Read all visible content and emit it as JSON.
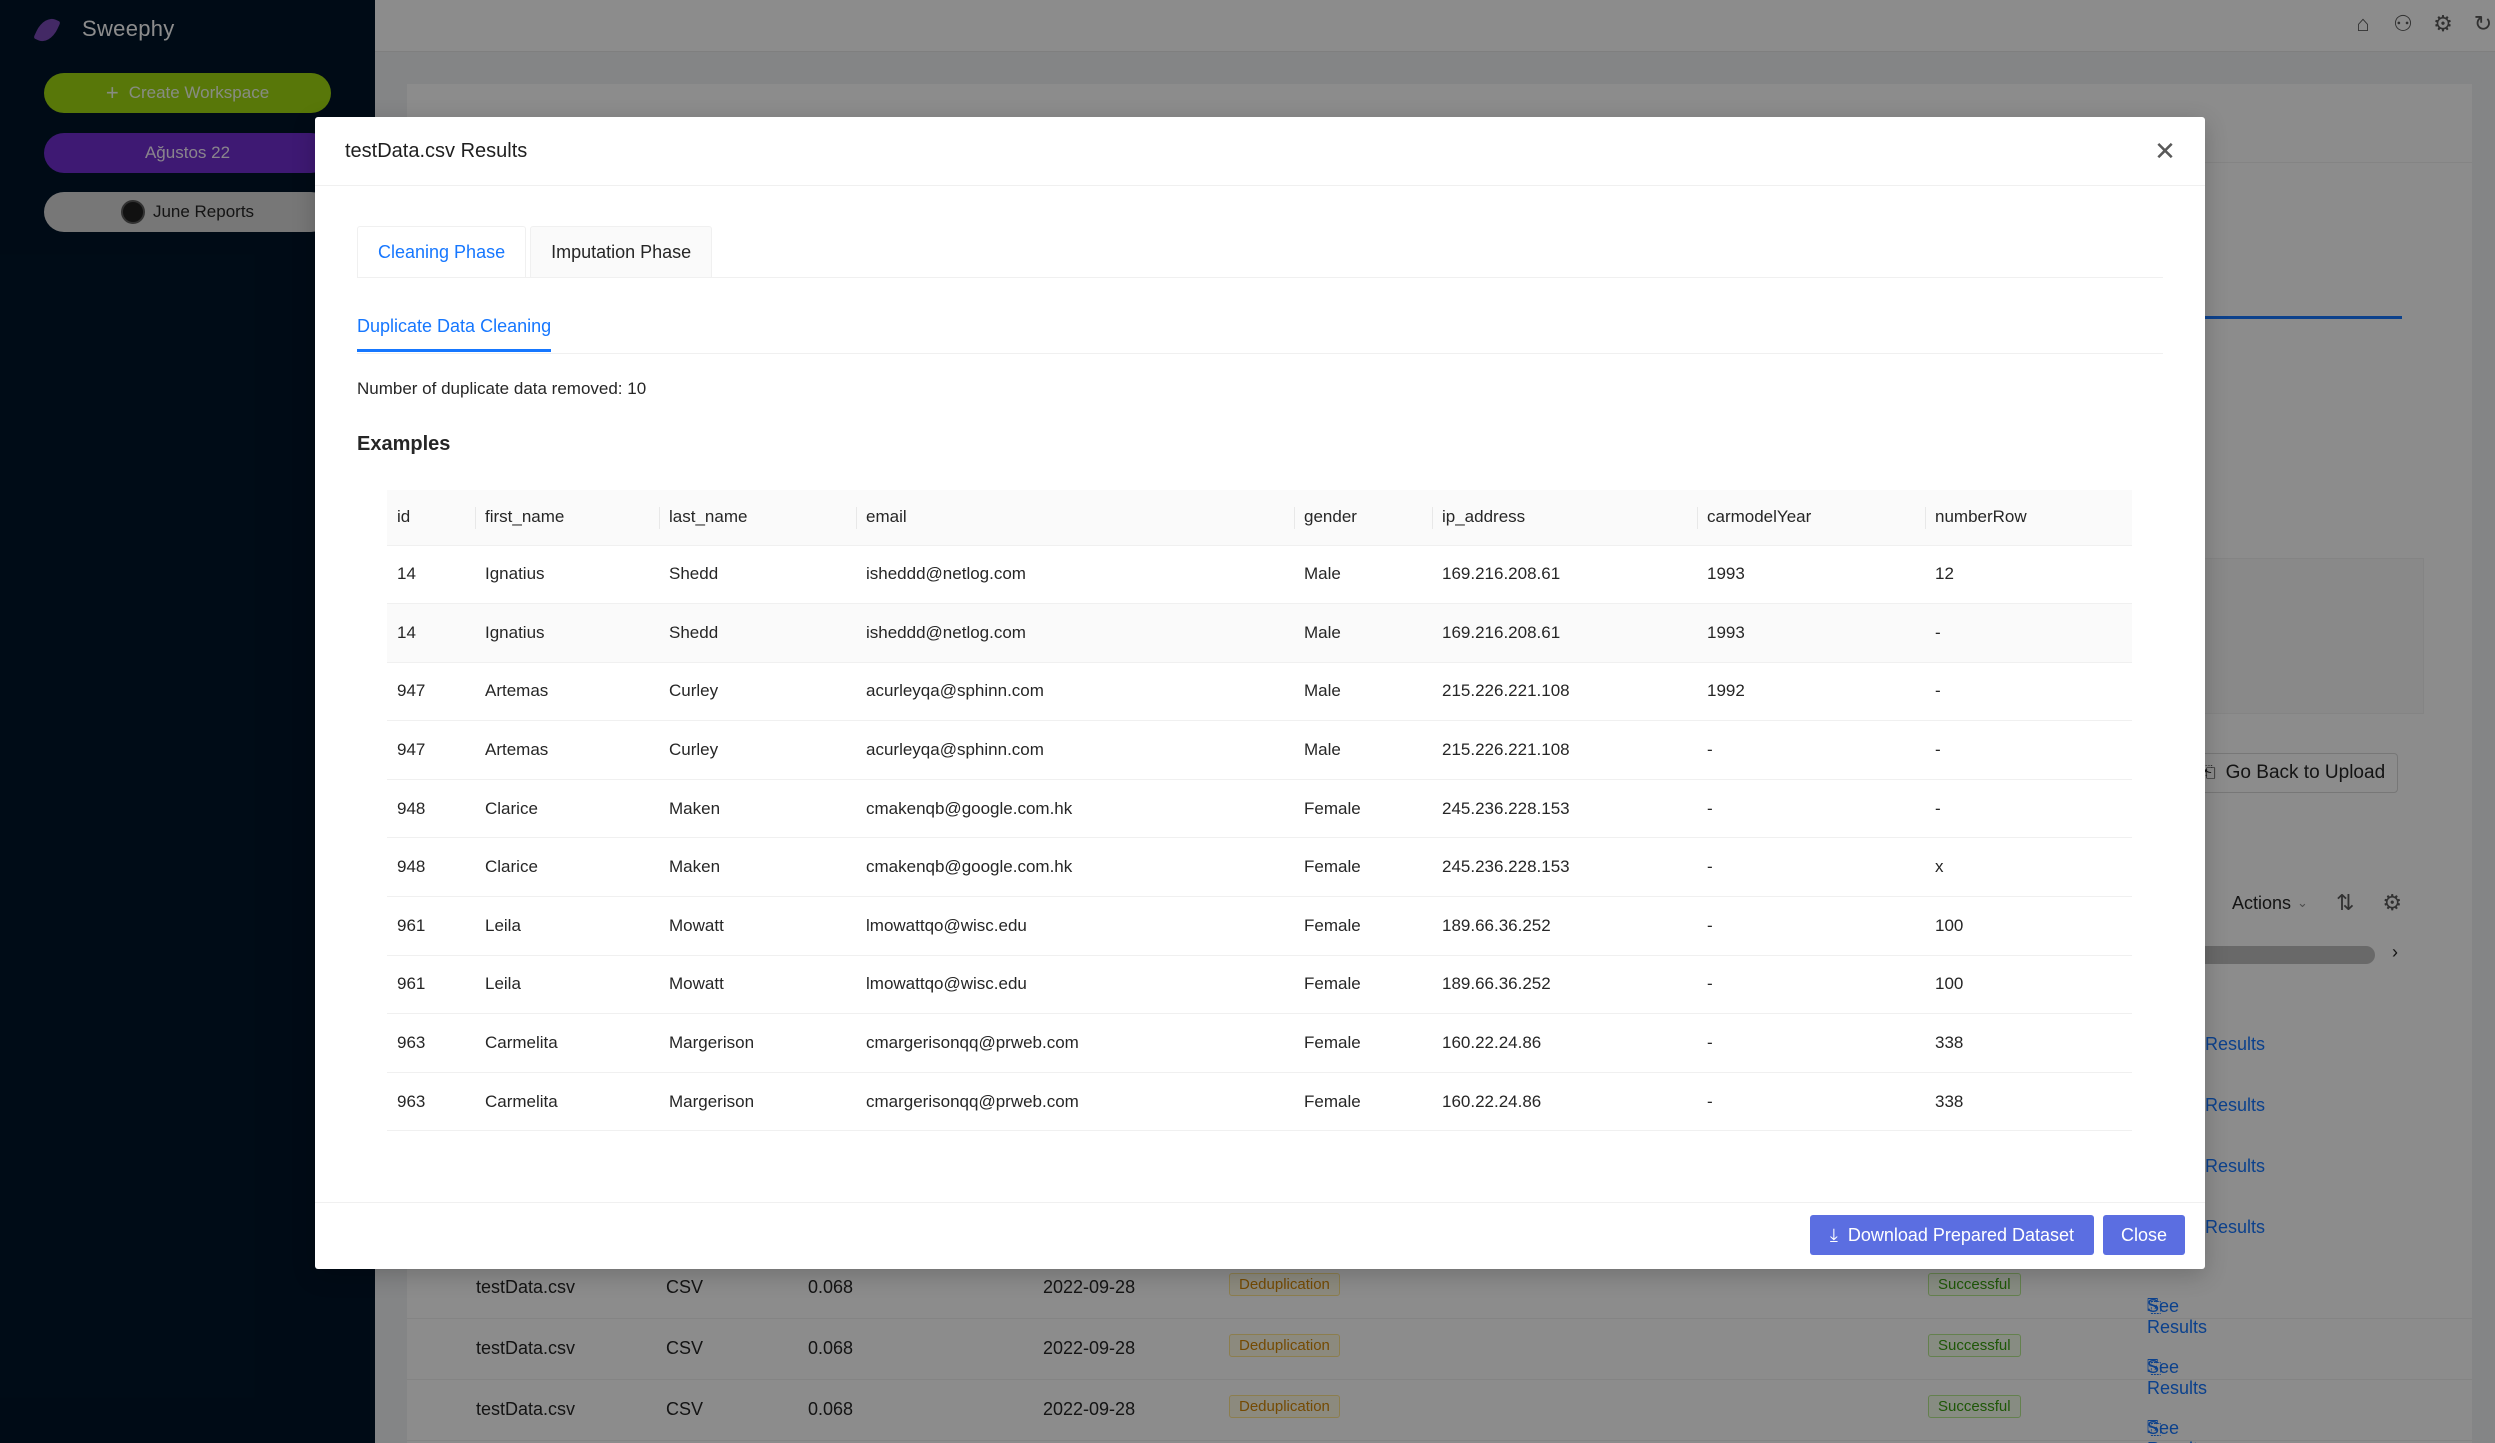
{
  "app": {
    "name": "Sweephy"
  },
  "sidebar": {
    "create_label": "Create Workspace",
    "workspaces": [
      {
        "label": "Ağustos 22",
        "color": "#722ed1"
      },
      {
        "label": "June Reports",
        "color": "#d9d9d9"
      }
    ]
  },
  "background": {
    "go_back_label": "Go Back to Upload",
    "actions_label": "Actions",
    "see_results_label": "Results",
    "rows": [
      {
        "name": "testData.csv",
        "type": "CSV",
        "size": "0.068",
        "date": "2022-09-28",
        "tag": "Deduplication",
        "status": "Successful",
        "link": "See Results"
      },
      {
        "name": "testData.csv",
        "type": "CSV",
        "size": "0.068",
        "date": "2022-09-28",
        "tag": "Deduplication",
        "status": "Successful",
        "link": "See Results"
      },
      {
        "name": "testData.csv",
        "type": "CSV",
        "size": "0.068",
        "date": "2022-09-28",
        "tag": "Deduplication",
        "status": "Successful",
        "link": "See Results"
      }
    ]
  },
  "modal": {
    "title": "testData.csv Results",
    "tabs": [
      {
        "label": "Cleaning Phase",
        "active": true
      },
      {
        "label": "Imputation Phase",
        "active": false
      }
    ],
    "sub_tab": "Duplicate Data Cleaning",
    "removed_text": "Number of duplicate data removed: 10",
    "examples_heading": "Examples",
    "columns": [
      "id",
      "first_name",
      "last_name",
      "email",
      "gender",
      "ip_address",
      "carmodelYear",
      "numberRow"
    ],
    "rows": [
      [
        "14",
        "Ignatius",
        "Shedd",
        "isheddd@netlog.com",
        "Male",
        "169.216.208.61",
        "1993",
        "12"
      ],
      [
        "14",
        "Ignatius",
        "Shedd",
        "isheddd@netlog.com",
        "Male",
        "169.216.208.61",
        "1993",
        "-"
      ],
      [
        "947",
        "Artemas",
        "Curley",
        "acurleyqa@sphinn.com",
        "Male",
        "215.226.221.108",
        "1992",
        "-"
      ],
      [
        "947",
        "Artemas",
        "Curley",
        "acurleyqa@sphinn.com",
        "Male",
        "215.226.221.108",
        "-",
        "-"
      ],
      [
        "948",
        "Clarice",
        "Maken",
        "cmakenqb@google.com.hk",
        "Female",
        "245.236.228.153",
        "-",
        "-"
      ],
      [
        "948",
        "Clarice",
        "Maken",
        "cmakenqb@google.com.hk",
        "Female",
        "245.236.228.153",
        "-",
        "x"
      ],
      [
        "961",
        "Leila",
        "Mowatt",
        "lmowattqo@wisc.edu",
        "Female",
        "189.66.36.252",
        "-",
        "100"
      ],
      [
        "961",
        "Leila",
        "Mowatt",
        "lmowattqo@wisc.edu",
        "Female",
        "189.66.36.252",
        "-",
        "100"
      ],
      [
        "963",
        "Carmelita",
        "Margerison",
        "cmargerisonqq@prweb.com",
        "Female",
        "160.22.24.86",
        "-",
        "338"
      ],
      [
        "963",
        "Carmelita",
        "Margerison",
        "cmargerisonqq@prweb.com",
        "Female",
        "160.22.24.86",
        "-",
        "338"
      ]
    ],
    "download_label": "Download Prepared Dataset",
    "close_label": "Close"
  },
  "colors": {
    "sidebar_bg": "#001529",
    "primary_button": "#5b6ee1",
    "link": "#1677ff"
  }
}
